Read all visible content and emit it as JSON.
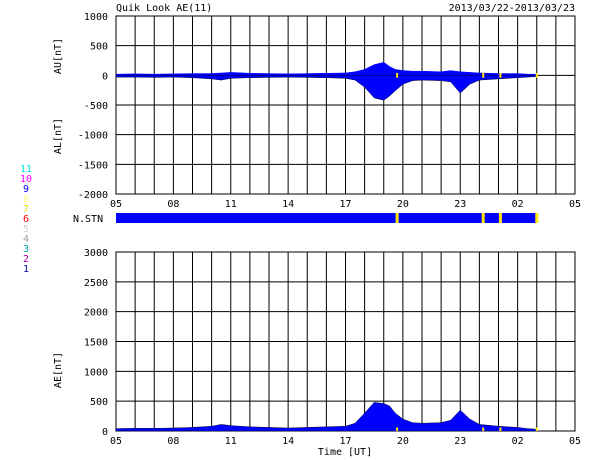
{
  "header": {
    "title": "Quik Look AE(11)",
    "date_range": "2013/03/22-2013/03/23"
  },
  "colors": {
    "signal": "#0000ff",
    "gap": "#ffe600",
    "grid": "#000000"
  },
  "station_legend": [
    {
      "label": "11",
      "color": "#00e0e0"
    },
    {
      "label": "10",
      "color": "#ff00ff"
    },
    {
      "label": "9",
      "color": "#0000ff"
    },
    {
      "label": "8",
      "color": "#ffff80"
    },
    {
      "label": "7",
      "color": "#e0e000"
    },
    {
      "label": "6",
      "color": "#ff0000"
    },
    {
      "label": "5",
      "color": "#d0d0d0"
    },
    {
      "label": "4",
      "color": "#a0a0a0"
    },
    {
      "label": "3",
      "color": "#00a0a0"
    },
    {
      "label": "2",
      "color": "#a000a0"
    },
    {
      "label": "1",
      "color": "#0000a0"
    }
  ],
  "chart_data": [
    {
      "type": "area",
      "id": "au_al",
      "ylabel_upper": "AU[nT]",
      "ylabel_lower": "AL[nT]",
      "ylim": [
        -2000,
        1000
      ],
      "yticks": [
        1000,
        500,
        0,
        -500,
        -1000,
        -1500,
        -2000
      ],
      "xlim": [
        5,
        29
      ],
      "xticks": [
        "05",
        "08",
        "11",
        "14",
        "17",
        "20",
        "23",
        "02",
        "05"
      ],
      "grid": true,
      "x": [
        5,
        6,
        7,
        8,
        9,
        10,
        10.5,
        11,
        12,
        13,
        14,
        15,
        16,
        17,
        17.5,
        18,
        18.5,
        19,
        19.3,
        19.6,
        20,
        20.5,
        21,
        22,
        22.5,
        23,
        23.5,
        24,
        25,
        26,
        26.5,
        27
      ],
      "AU": [
        20,
        25,
        20,
        25,
        30,
        30,
        40,
        50,
        35,
        30,
        25,
        30,
        35,
        40,
        60,
        100,
        180,
        220,
        150,
        100,
        80,
        70,
        70,
        60,
        80,
        60,
        50,
        40,
        30,
        30,
        20,
        20
      ],
      "AL": [
        -30,
        -30,
        -35,
        -30,
        -40,
        -60,
        -80,
        -50,
        -40,
        -35,
        -30,
        -35,
        -40,
        -50,
        -80,
        -200,
        -380,
        -420,
        -350,
        -260,
        -150,
        -90,
        -80,
        -90,
        -110,
        -300,
        -150,
        -80,
        -60,
        -40,
        -30,
        -20
      ]
    },
    {
      "type": "area",
      "id": "ae",
      "ylabel": "AE[nT]",
      "xlabel": "Time [UT]",
      "ylim": [
        0,
        3000
      ],
      "yticks": [
        3000,
        2500,
        2000,
        1500,
        1000,
        500,
        0
      ],
      "xlim": [
        5,
        29
      ],
      "xticks": [
        "05",
        "08",
        "11",
        "14",
        "17",
        "20",
        "23",
        "02",
        "05"
      ],
      "grid": true,
      "x": [
        5,
        6,
        7,
        8,
        9,
        10,
        10.5,
        11,
        12,
        13,
        14,
        15,
        16,
        17,
        17.5,
        18,
        18.5,
        19,
        19.3,
        19.6,
        20,
        20.5,
        21,
        22,
        22.5,
        23,
        23.5,
        24,
        25,
        26,
        26.5,
        27
      ],
      "AE": [
        40,
        45,
        45,
        50,
        60,
        80,
        110,
        90,
        70,
        60,
        50,
        60,
        70,
        80,
        130,
        300,
        480,
        460,
        420,
        300,
        200,
        140,
        130,
        140,
        180,
        350,
        200,
        110,
        80,
        60,
        40,
        30
      ]
    }
  ],
  "nstn": {
    "label": "N.STN",
    "range": [
      5,
      27
    ],
    "gaps": [
      19.7,
      24.2,
      25.1,
      27.0
    ]
  }
}
